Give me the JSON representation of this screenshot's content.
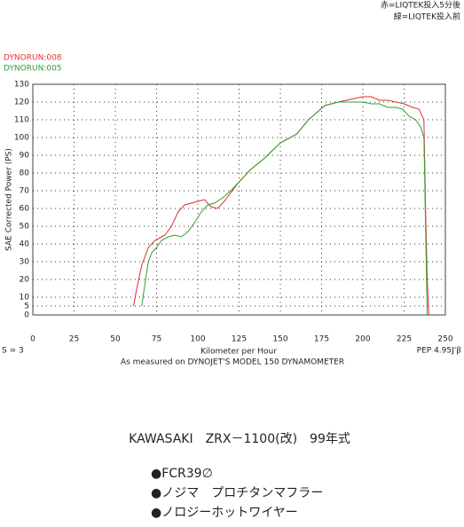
{
  "chart_data": {
    "type": "line",
    "notes": [
      "赤=LIQTEK投入5分後",
      "緑=LIQTEK投入前"
    ],
    "ylabel": "SAE Corrected Power (PS)",
    "xlabel": "Kilometer per Hour",
    "left_footer": "S = 3",
    "right_footer": "PEP 4.95J'β",
    "caption": "As measured on DYNOJET'S MODEL 150 DYNAMOMETER",
    "xlim": [
      0,
      250
    ],
    "xticks": [
      0,
      25,
      50,
      75,
      100,
      125,
      150,
      175,
      200,
      225,
      250
    ],
    "ylim": [
      0,
      130
    ],
    "yticks": [
      0,
      5,
      10,
      20,
      30,
      40,
      50,
      60,
      70,
      80,
      90,
      100,
      110,
      120,
      130
    ],
    "grid": true,
    "series": [
      {
        "name": "DYNORUN:008",
        "color": "#e03030",
        "x": [
          61,
          63,
          66,
          70,
          74,
          78,
          80,
          84,
          88,
          92,
          96,
          100,
          104,
          108,
          112,
          116,
          120,
          125,
          132,
          140,
          150,
          160,
          167,
          172,
          177,
          185,
          190,
          195,
          200,
          205,
          210,
          215,
          220,
          225,
          230,
          234,
          237,
          238,
          239,
          240
        ],
        "values": [
          5,
          15,
          28,
          38,
          42,
          44,
          45,
          50,
          58,
          62,
          63,
          64,
          65,
          61,
          60,
          64,
          69,
          75,
          82,
          88,
          97,
          102,
          110,
          114,
          118,
          120,
          121,
          122,
          123,
          123,
          121,
          121,
          120,
          119,
          117,
          116,
          110,
          60,
          20,
          0
        ]
      },
      {
        "name": "DYNORUN:005",
        "color": "#30a030",
        "x": [
          66,
          68,
          70,
          72,
          75,
          78,
          82,
          86,
          90,
          94,
          98,
          102,
          106,
          110,
          115,
          120,
          125,
          132,
          140,
          150,
          160,
          167,
          172,
          177,
          185,
          190,
          195,
          200,
          205,
          210,
          215,
          220,
          224,
          228,
          232,
          235,
          237,
          238,
          239
        ],
        "values": [
          5,
          18,
          30,
          35,
          38,
          42,
          44,
          45,
          44,
          47,
          52,
          58,
          62,
          63,
          66,
          70,
          75,
          82,
          88,
          97,
          102,
          110,
          114,
          118,
          120,
          120,
          120,
          120,
          119,
          119,
          117,
          117,
          116,
          112,
          110,
          106,
          100,
          50,
          0
        ]
      }
    ]
  },
  "model": "KAWASAKI　ZRX－1100(改)　99年式",
  "features": [
    "●FCR39∅",
    "●ノジマ　プロチタンマフラー",
    "●ノロジーホットワイヤー"
  ]
}
